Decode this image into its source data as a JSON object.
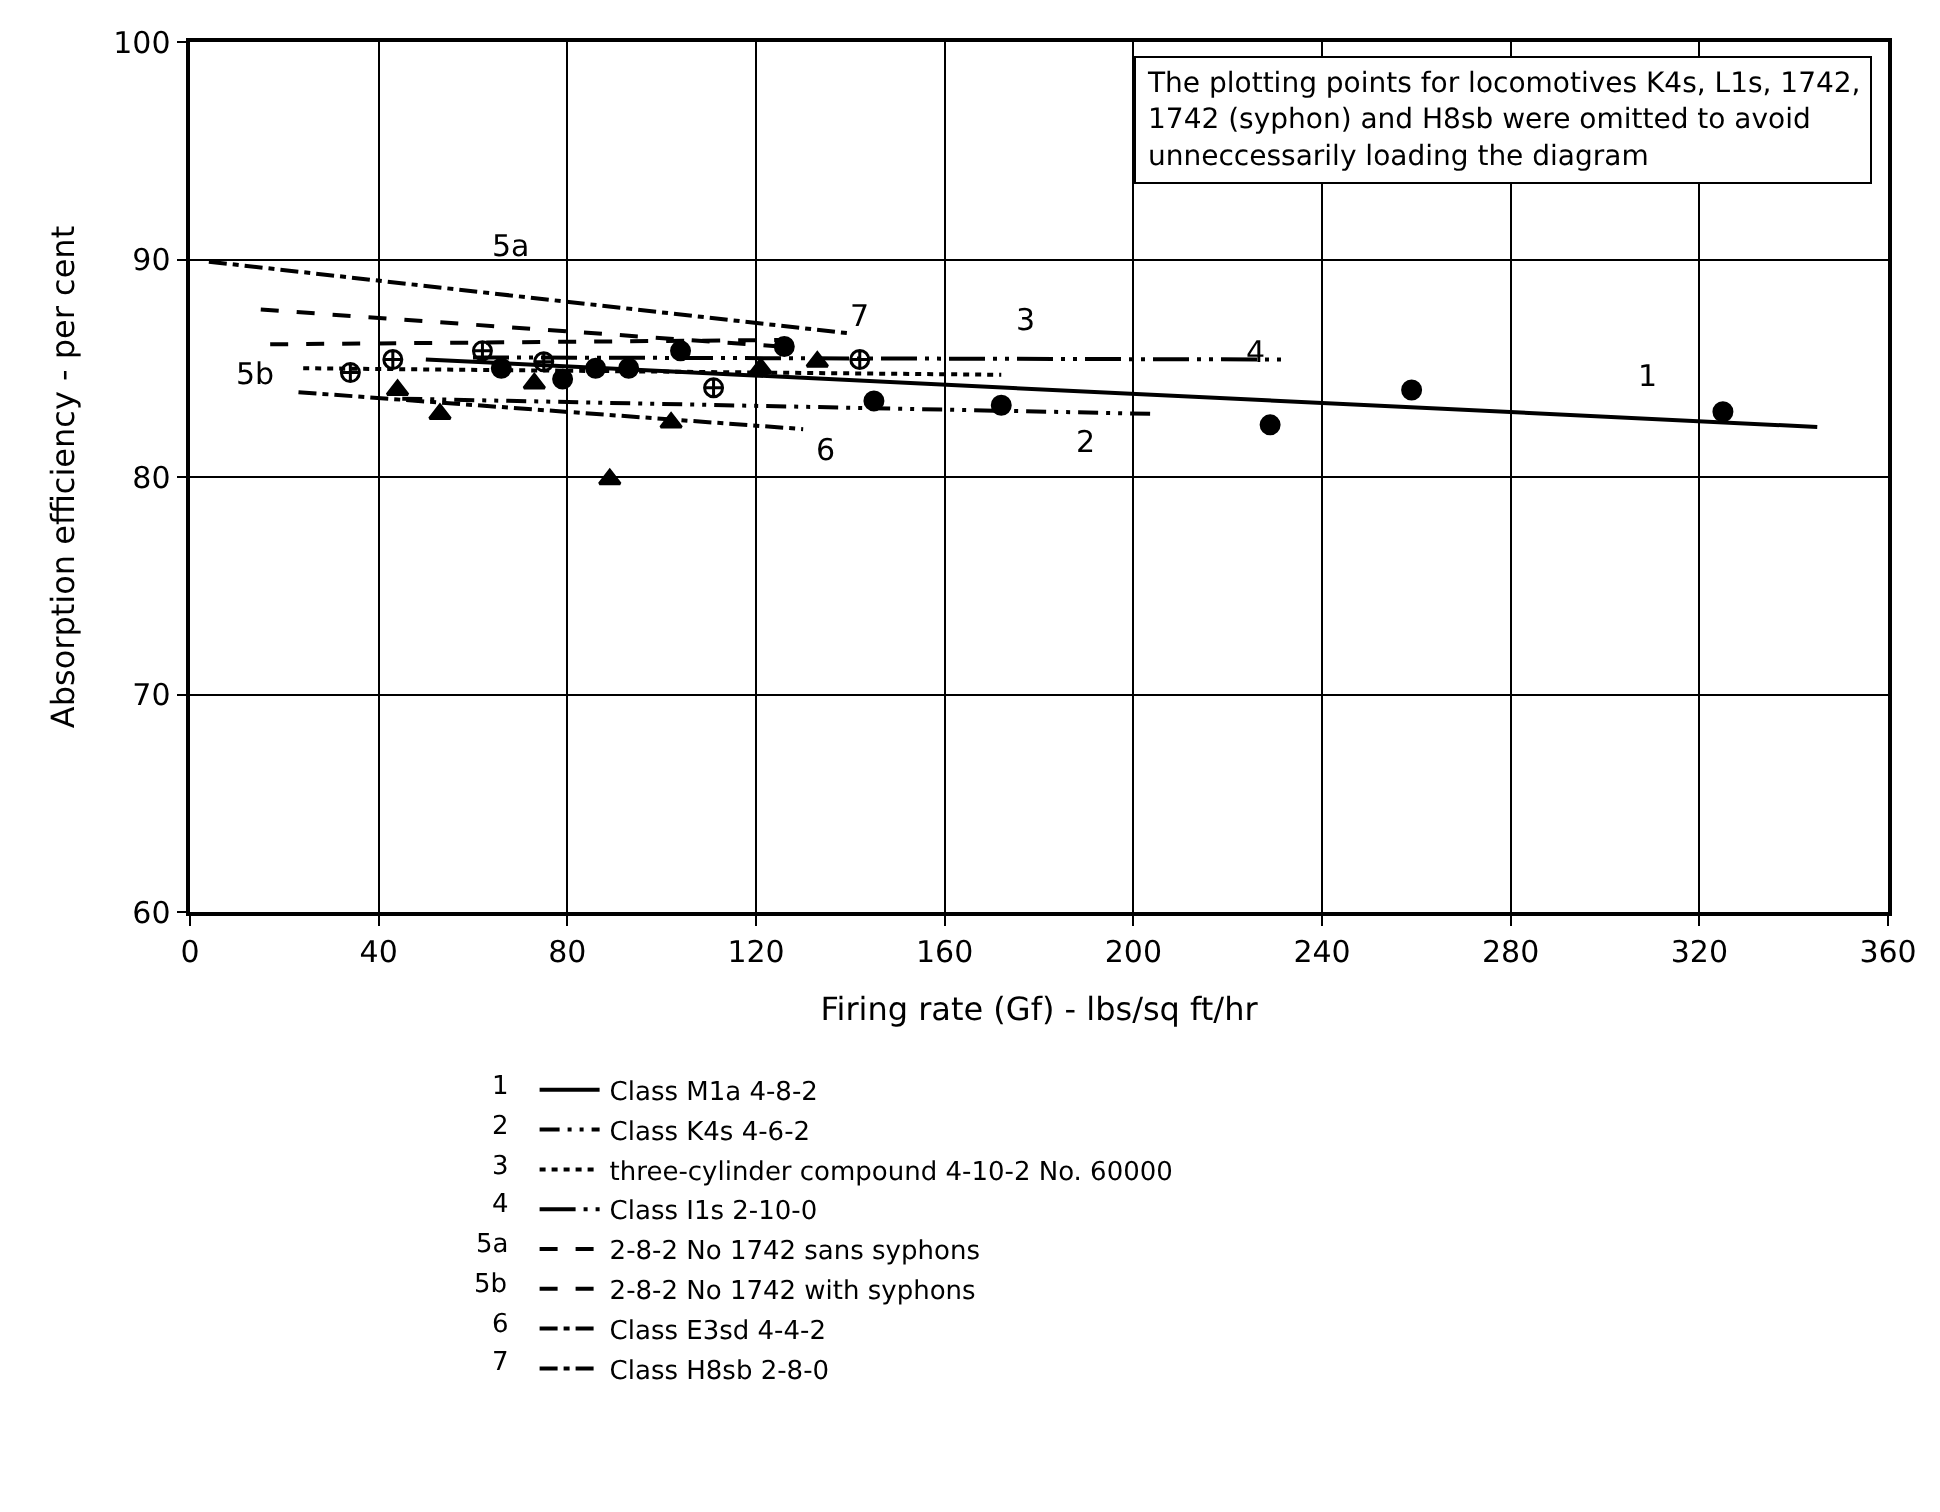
{
  "chart_data": {
    "type": "scatter",
    "xlabel": "Firing rate (Gf) - lbs/sq ft/hr",
    "ylabel": "Absorption efficiency - per cent",
    "xlim": [
      0,
      360
    ],
    "xticks": [
      0,
      40,
      80,
      120,
      160,
      200,
      240,
      280,
      320,
      360
    ],
    "ylim": [
      60,
      100
    ],
    "yticks": [
      60,
      70,
      80,
      90,
      100
    ],
    "grid": true,
    "legend": "bottom",
    "series": [
      {
        "marker": "circle",
        "color": "#000000",
        "x": [
          66,
          79,
          86,
          93,
          104,
          126,
          145,
          172,
          229,
          259,
          325
        ],
        "values": [
          85.0,
          84.5,
          85.0,
          85.0,
          85.8,
          86.0,
          83.5,
          83.3,
          82.4,
          84.0,
          83.0
        ]
      },
      {
        "type": "line",
        "name": "Class M1a 4-8-2",
        "line_style": "solid",
        "color": "#000000",
        "x": [
          50,
          345
        ],
        "values": [
          85.4,
          82.3
        ]
      },
      {
        "type": "line",
        "name": "Class K4s 4-6-2",
        "line_style": "dashdotdot",
        "color": "#000000",
        "x": [
          45,
          205
        ],
        "values": [
          83.6,
          82.9
        ]
      },
      {
        "marker": "triangle",
        "color": "#000000",
        "x": [
          44,
          53,
          73,
          89,
          102,
          121,
          133
        ],
        "values": [
          84.0,
          82.9,
          84.3,
          79.9,
          82.5,
          85.0,
          85.3
        ]
      },
      {
        "type": "line",
        "name": "three-cylinder compound 4-10-2 No. 60000",
        "line_style": "dotted",
        "color": "#000000",
        "x": [
          24,
          172
        ],
        "values": [
          85.0,
          84.7
        ]
      },
      {
        "type": "line",
        "name": "Class I1s 2-10-0",
        "line_style": "longdashdotdot",
        "color": "#000000",
        "x": [
          60,
          232
        ],
        "values": [
          85.5,
          85.4
        ]
      },
      {
        "type": "line",
        "name": "2-8-2 No 1742 sans syphons",
        "line_style": "dashed",
        "color": "#000000",
        "x": [
          17,
          125
        ],
        "values": [
          86.1,
          86.3
        ]
      },
      {
        "type": "line",
        "name": "2-8-2 No 1742 with syphons",
        "line_style": "dashed",
        "color": "#000000",
        "x": [
          15,
          125
        ],
        "values": [
          87.7,
          86.0
        ]
      },
      {
        "marker": "cross",
        "color": "#000000",
        "x": [
          34,
          43,
          62,
          75,
          111,
          142
        ],
        "values": [
          84.8,
          85.4,
          85.8,
          85.3,
          84.1,
          85.4
        ]
      },
      {
        "type": "line",
        "name": "Class E3sd 4-4-2",
        "line_style": "dashdot",
        "color": "#000000",
        "x": [
          23,
          130
        ],
        "values": [
          83.9,
          82.2
        ]
      },
      {
        "type": "line",
        "name": "Class H8sb 2-8-0",
        "line_style": "dashdot",
        "color": "#000000",
        "x": [
          4,
          140
        ],
        "values": [
          89.9,
          86.6
        ]
      }
    ],
    "annotations": [
      "1",
      "2",
      "3",
      "4",
      "5a",
      "5b",
      "6",
      "7",
      "The plotting points for locomotives K4s, L1s, 1742, 1742 (syphon) and H8sb were omitted to avoid unneccessarily loading the diagram",
      "1",
      "2",
      "3",
      "4",
      "5a",
      "5b",
      "6",
      "7"
    ]
  }
}
